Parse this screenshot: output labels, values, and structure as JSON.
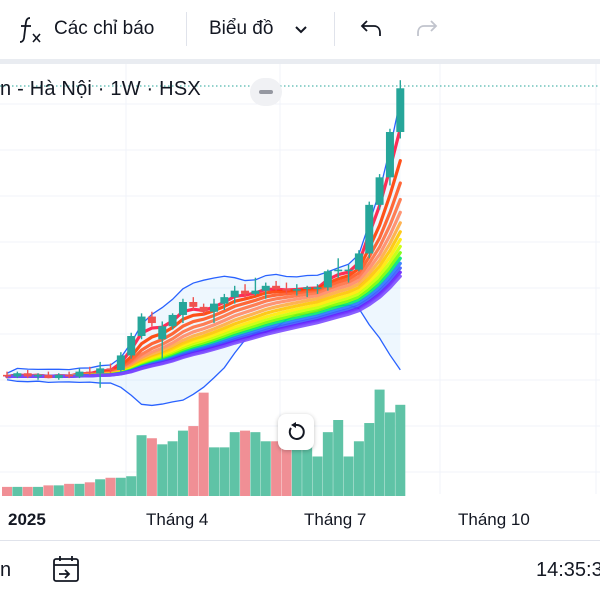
{
  "toolbar": {
    "indicators_label": "Các chỉ báo",
    "chart_type_label": "Biểu đồ",
    "icons": {
      "indicators": "fx-icon",
      "chart_type": "chevron-down-icon",
      "undo": "undo-icon",
      "redo": "redo-icon"
    }
  },
  "legend": {
    "text": "n - Hà Nội · 1W · HSX"
  },
  "x_axis": {
    "labels": [
      "2025",
      "Tháng 4",
      "Tháng 7",
      "Tháng 10"
    ]
  },
  "bottom_bar": {
    "left_text": "n",
    "time": "14:35:3",
    "icons": {
      "goto": "calendar-goto-icon"
    }
  },
  "colors": {
    "up": "#26a69a",
    "down": "#ef5350",
    "volume_up": "#5fc3a6",
    "volume_down": "#f08f95",
    "bollinger": "#2962ff"
  },
  "chart_data": {
    "type": "candlestick",
    "interval": "1W",
    "exchange": "HSX",
    "candles": [
      {
        "o": 98,
        "h": 100,
        "l": 96,
        "c": 97
      },
      {
        "o": 97,
        "h": 100,
        "l": 96,
        "c": 99
      },
      {
        "o": 99,
        "h": 101,
        "l": 96,
        "c": 97
      },
      {
        "o": 97,
        "h": 99,
        "l": 95,
        "c": 98
      },
      {
        "o": 98,
        "h": 100,
        "l": 96,
        "c": 96
      },
      {
        "o": 96,
        "h": 99,
        "l": 95,
        "c": 98
      },
      {
        "o": 98,
        "h": 100,
        "l": 96,
        "c": 97
      },
      {
        "o": 97,
        "h": 102,
        "l": 96,
        "c": 100
      },
      {
        "o": 100,
        "h": 103,
        "l": 98,
        "c": 99
      },
      {
        "o": 99,
        "h": 106,
        "l": 90,
        "c": 102
      },
      {
        "o": 102,
        "h": 105,
        "l": 99,
        "c": 101
      },
      {
        "o": 101,
        "h": 112,
        "l": 100,
        "c": 110
      },
      {
        "o": 110,
        "h": 124,
        "l": 108,
        "c": 122
      },
      {
        "o": 122,
        "h": 136,
        "l": 120,
        "c": 134
      },
      {
        "o": 134,
        "h": 137,
        "l": 128,
        "c": 130
      },
      {
        "o": 120,
        "h": 131,
        "l": 108,
        "c": 128
      },
      {
        "o": 128,
        "h": 136,
        "l": 126,
        "c": 135
      },
      {
        "o": 135,
        "h": 145,
        "l": 130,
        "c": 143
      },
      {
        "o": 143,
        "h": 146,
        "l": 138,
        "c": 140
      },
      {
        "o": 140,
        "h": 142,
        "l": 135,
        "c": 137
      },
      {
        "o": 137,
        "h": 145,
        "l": 130,
        "c": 142
      },
      {
        "o": 142,
        "h": 148,
        "l": 138,
        "c": 146
      },
      {
        "o": 146,
        "h": 153,
        "l": 142,
        "c": 150
      },
      {
        "o": 150,
        "h": 154,
        "l": 145,
        "c": 148
      },
      {
        "o": 148,
        "h": 158,
        "l": 147,
        "c": 150
      },
      {
        "o": 150,
        "h": 155,
        "l": 145,
        "c": 153
      },
      {
        "o": 153,
        "h": 156,
        "l": 150,
        "c": 151
      },
      {
        "o": 151,
        "h": 155,
        "l": 148,
        "c": 150
      },
      {
        "o": 150,
        "h": 154,
        "l": 147,
        "c": 151
      },
      {
        "o": 151,
        "h": 153,
        "l": 146,
        "c": 152
      },
      {
        "o": 152,
        "h": 154,
        "l": 148,
        "c": 152
      },
      {
        "o": 152,
        "h": 163,
        "l": 150,
        "c": 162
      },
      {
        "o": 162,
        "h": 170,
        "l": 158,
        "c": 163
      },
      {
        "o": 163,
        "h": 166,
        "l": 155,
        "c": 163
      },
      {
        "o": 163,
        "h": 175,
        "l": 162,
        "c": 173
      },
      {
        "o": 173,
        "h": 205,
        "l": 170,
        "c": 203
      },
      {
        "o": 203,
        "h": 222,
        "l": 200,
        "c": 220
      },
      {
        "o": 220,
        "h": 250,
        "l": 215,
        "c": 248
      },
      {
        "o": 248,
        "h": 280,
        "l": 244,
        "c": 275
      }
    ],
    "volume": [
      6,
      6,
      6,
      6,
      7,
      7,
      8,
      8,
      9,
      11,
      12,
      12,
      13,
      40,
      38,
      34,
      36,
      43,
      46,
      68,
      32,
      32,
      42,
      43,
      42,
      36,
      36,
      42,
      36,
      36,
      26,
      42,
      50,
      26,
      36,
      48,
      70,
      55,
      60
    ],
    "y_range": [
      80,
      290
    ]
  }
}
